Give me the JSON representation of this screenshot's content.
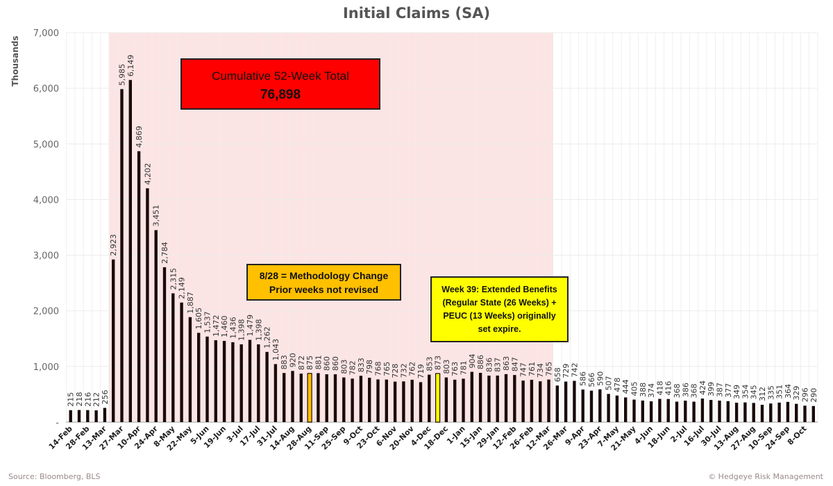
{
  "chart_data": {
    "type": "bar",
    "title": "Initial Claims (SA)",
    "ylabel": "Thousands",
    "ylim": [
      0,
      7000
    ],
    "yticks": [
      "-",
      "1,000",
      "2,000",
      "3,000",
      "4,000",
      "5,000",
      "6,000",
      "7,000"
    ],
    "grid": true,
    "x_tick_labels": [
      "14-Feb",
      "28-Feb",
      "13-Mar",
      "27-Mar",
      "10-Apr",
      "24-Apr",
      "8-May",
      "22-May",
      "5-Jun",
      "19-Jun",
      "3-Jul",
      "17-Jul",
      "31-Jul",
      "14-Aug",
      "28-Aug",
      "11-Sep",
      "25-Sep",
      "9-Oct",
      "23-Oct",
      "6-Nov",
      "20-Nov",
      "4-Dec",
      "18-Dec",
      "1-Jan",
      "15-Jan",
      "29-Jan",
      "12-Feb",
      "26-Feb",
      "12-Mar",
      "26-Mar",
      "9-Apr",
      "23-Apr",
      "7-May",
      "21-May",
      "4-Jun",
      "18-Jun",
      "2-Jul",
      "16-Jul",
      "30-Jul",
      "13-Aug",
      "27-Aug",
      "10-Sep",
      "24-Sep",
      "8-Oct"
    ],
    "values": [
      215,
      218,
      216,
      212,
      256,
      2923,
      5985,
      6149,
      4869,
      4202,
      3451,
      2784,
      2315,
      2149,
      1887,
      1605,
      1537,
      1472,
      1460,
      1436,
      1398,
      1479,
      1398,
      1262,
      1043,
      883,
      920,
      872,
      875,
      881,
      860,
      860,
      803,
      782,
      833,
      798,
      768,
      765,
      728,
      732,
      762,
      719,
      853,
      873,
      803,
      763,
      781,
      904,
      886,
      836,
      837,
      863,
      847,
      747,
      761,
      734,
      765,
      658,
      729,
      742,
      586,
      566,
      590,
      507,
      478,
      444,
      405,
      388,
      374,
      418,
      416,
      368,
      386,
      368,
      424,
      399,
      387,
      377,
      349,
      354,
      345,
      312,
      335,
      351,
      364,
      329,
      296,
      290
    ],
    "highlighted_bars": [
      {
        "index": 28,
        "color": "#ffc000"
      },
      {
        "index": 43,
        "color": "#ffff00"
      }
    ],
    "shaded_range": {
      "from_index": 5,
      "to_index": 56,
      "color": "#fde4e4"
    },
    "bar_color": "#1a0a0a"
  },
  "annotations": {
    "cumulative_label": "Cumulative 52-Week Total",
    "cumulative_value": "76,898",
    "methodology_line1": "8/28 = Methodology Change",
    "methodology_line2": "Prior weeks not revised",
    "week39_line1": "Week 39: Extended Benefits",
    "week39_line2": "(Regular State (26 Weeks) +",
    "week39_line3": "PEUC (13 Weeks) originally",
    "week39_line4": "set expire."
  },
  "footer": {
    "source": "Source: Bloomberg, BLS",
    "copyright": "© Hedgeye Risk Management"
  }
}
